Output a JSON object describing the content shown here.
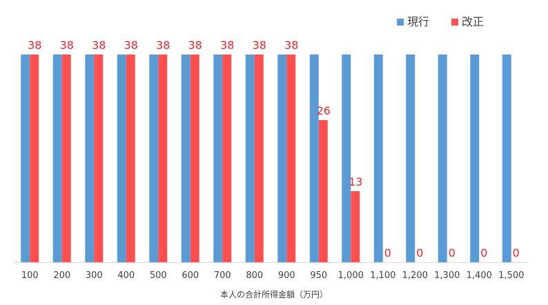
{
  "chart_data": {
    "type": "bar",
    "categories": [
      "100",
      "200",
      "300",
      "400",
      "500",
      "600",
      "700",
      "800",
      "900",
      "950",
      "1,000",
      "1,100",
      "1,200",
      "1,300",
      "1,400",
      "1,500"
    ],
    "series": [
      {
        "name": "現行",
        "color": "#5b9bd5",
        "values": [
          38,
          38,
          38,
          38,
          38,
          38,
          38,
          38,
          38,
          38,
          38,
          38,
          38,
          38,
          38,
          38
        ]
      },
      {
        "name": "改正",
        "color": "#ff4f4f",
        "values": [
          38,
          38,
          38,
          38,
          38,
          38,
          38,
          38,
          38,
          26,
          13,
          0,
          0,
          0,
          0,
          0
        ]
      }
    ],
    "data_labels": {
      "series": "改正",
      "color": "#e8262d"
    },
    "title": "",
    "xlabel": "本人の合計所得金額（万円）",
    "ylabel": "",
    "ylim": [
      0,
      38
    ],
    "grid": false,
    "legend_position": "top-right"
  }
}
